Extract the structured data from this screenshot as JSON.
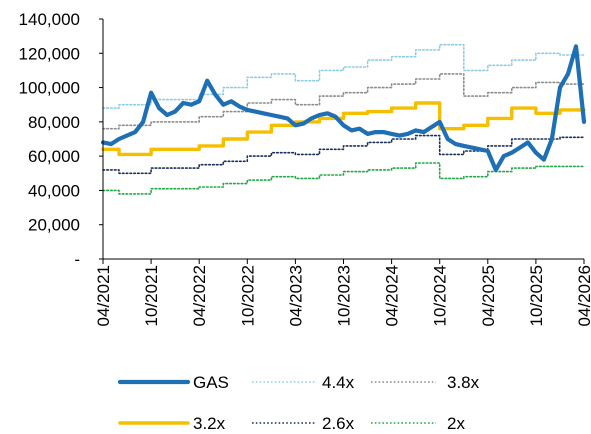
{
  "chart_data": {
    "type": "line",
    "title": "",
    "xlabel": "",
    "ylabel": "",
    "ylim": [
      0,
      140000
    ],
    "y_ticks": [
      0,
      20000,
      40000,
      60000,
      80000,
      100000,
      120000,
      140000
    ],
    "y_tick_labels": [
      "-",
      "20,000",
      "40,000",
      "60,000",
      "80,000",
      "100,000",
      "120,000",
      "140,000"
    ],
    "x_range": [
      "2021-04",
      "2026-04"
    ],
    "x_ticks": [
      "2021-04",
      "2021-10",
      "2022-04",
      "2022-10",
      "2023-04",
      "2023-10",
      "2024-04",
      "2024-10",
      "2025-04",
      "2025-10",
      "2026-04"
    ],
    "x_tick_labels": [
      "04/2021",
      "10/2021",
      "04/2022",
      "10/2022",
      "04/2023",
      "10/2023",
      "04/2024",
      "10/2024",
      "04/2025",
      "10/2025",
      "04/2026"
    ],
    "grid": false,
    "legend_position": "bottom",
    "series": [
      {
        "name": "GAS",
        "color": "#1f6fb4",
        "style": "solid-thick",
        "x": [
          "2021-04",
          "2021-05",
          "2021-06",
          "2021-07",
          "2021-08",
          "2021-09",
          "2021-10",
          "2021-11",
          "2021-12",
          "2022-01",
          "2022-02",
          "2022-03",
          "2022-04",
          "2022-05",
          "2022-06",
          "2022-07",
          "2022-08",
          "2022-09",
          "2022-10",
          "2022-11",
          "2022-12",
          "2023-01",
          "2023-02",
          "2023-03",
          "2023-04",
          "2023-05",
          "2023-06",
          "2023-07",
          "2023-08",
          "2023-09",
          "2023-10",
          "2023-11",
          "2023-12",
          "2024-01",
          "2024-02",
          "2024-03",
          "2024-04",
          "2024-05",
          "2024-06",
          "2024-07",
          "2024-08",
          "2024-09",
          "2024-10",
          "2024-11",
          "2024-12",
          "2025-01",
          "2025-02",
          "2025-03",
          "2025-04",
          "2025-05",
          "2025-06",
          "2025-07",
          "2025-08",
          "2025-09",
          "2025-10",
          "2025-11",
          "2025-12",
          "2026-01",
          "2026-02",
          "2026-03",
          "2026-04"
        ],
        "values": [
          68000,
          67000,
          70000,
          72000,
          74000,
          80000,
          97000,
          88000,
          84000,
          86000,
          91000,
          90000,
          92000,
          104000,
          96000,
          90000,
          92000,
          89000,
          87000,
          86000,
          85000,
          84000,
          83000,
          82000,
          78000,
          79000,
          82000,
          84000,
          85000,
          83000,
          78000,
          75000,
          76000,
          73000,
          74000,
          74000,
          73000,
          72000,
          73000,
          75000,
          74000,
          77000,
          80000,
          70000,
          67000,
          66000,
          65000,
          64000,
          63000,
          52000,
          60000,
          62000,
          65000,
          68000,
          62000,
          58000,
          70000,
          100000,
          108000,
          124000,
          80000
        ]
      },
      {
        "name": "4.4x",
        "color": "#8dcbe6",
        "style": "dotted",
        "x": [
          "2021-04",
          "2021-06",
          "2021-06",
          "2021-10",
          "2021-10",
          "2022-04",
          "2022-04",
          "2022-07",
          "2022-07",
          "2022-10",
          "2022-10",
          "2023-01",
          "2023-01",
          "2023-04",
          "2023-04",
          "2023-07",
          "2023-07",
          "2023-10",
          "2023-10",
          "2024-01",
          "2024-01",
          "2024-04",
          "2024-04",
          "2024-07",
          "2024-07",
          "2024-10",
          "2024-10",
          "2025-01",
          "2025-01",
          "2025-04",
          "2025-04",
          "2025-07",
          "2025-07",
          "2025-10",
          "2025-10",
          "2026-01",
          "2026-01",
          "2026-04"
        ],
        "values": [
          88000,
          88000,
          90000,
          90000,
          93000,
          93000,
          96000,
          96000,
          100000,
          100000,
          106000,
          106000,
          108000,
          108000,
          104000,
          104000,
          110000,
          110000,
          112000,
          112000,
          116000,
          116000,
          118000,
          118000,
          122000,
          122000,
          125000,
          125000,
          110000,
          110000,
          113000,
          113000,
          116000,
          116000,
          120000,
          120000,
          119000,
          119000
        ]
      },
      {
        "name": "3.8x",
        "color": "#8c8c8c",
        "style": "dotted",
        "x": [
          "2021-04",
          "2021-06",
          "2021-06",
          "2021-10",
          "2021-10",
          "2022-04",
          "2022-04",
          "2022-07",
          "2022-07",
          "2022-10",
          "2022-10",
          "2023-01",
          "2023-01",
          "2023-04",
          "2023-04",
          "2023-07",
          "2023-07",
          "2023-10",
          "2023-10",
          "2024-01",
          "2024-01",
          "2024-04",
          "2024-04",
          "2024-07",
          "2024-07",
          "2024-10",
          "2024-10",
          "2025-01",
          "2025-01",
          "2025-04",
          "2025-04",
          "2025-07",
          "2025-07",
          "2025-10",
          "2025-10",
          "2026-01",
          "2026-01",
          "2026-04"
        ],
        "values": [
          76000,
          76000,
          78000,
          78000,
          80000,
          80000,
          83000,
          83000,
          86000,
          86000,
          91000,
          91000,
          93000,
          93000,
          90000,
          90000,
          95000,
          95000,
          97000,
          97000,
          100000,
          100000,
          102000,
          102000,
          105000,
          105000,
          108000,
          108000,
          95000,
          95000,
          97000,
          97000,
          100000,
          100000,
          103000,
          103000,
          102000,
          102000
        ]
      },
      {
        "name": "3.2x",
        "color": "#f5bf00",
        "style": "solid-thick",
        "x": [
          "2021-04",
          "2021-06",
          "2021-06",
          "2021-10",
          "2021-10",
          "2022-04",
          "2022-04",
          "2022-07",
          "2022-07",
          "2022-10",
          "2022-10",
          "2023-01",
          "2023-01",
          "2023-04",
          "2023-04",
          "2023-07",
          "2023-07",
          "2023-10",
          "2023-10",
          "2024-01",
          "2024-01",
          "2024-04",
          "2024-04",
          "2024-07",
          "2024-07",
          "2024-10",
          "2024-10",
          "2025-01",
          "2025-01",
          "2025-04",
          "2025-04",
          "2025-07",
          "2025-07",
          "2025-10",
          "2025-10",
          "2026-01",
          "2026-01",
          "2026-04"
        ],
        "values": [
          64000,
          64000,
          61000,
          61000,
          64000,
          64000,
          66000,
          66000,
          70000,
          70000,
          74000,
          74000,
          78000,
          78000,
          80000,
          80000,
          82000,
          82000,
          85000,
          85000,
          86000,
          86000,
          88000,
          88000,
          91000,
          91000,
          76000,
          76000,
          78000,
          78000,
          82000,
          82000,
          88000,
          88000,
          85000,
          85000,
          87000,
          87000
        ]
      },
      {
        "name": "2.6x",
        "color": "#1a2e5a",
        "style": "dotted",
        "x": [
          "2021-04",
          "2021-06",
          "2021-06",
          "2021-10",
          "2021-10",
          "2022-04",
          "2022-04",
          "2022-07",
          "2022-07",
          "2022-10",
          "2022-10",
          "2023-01",
          "2023-01",
          "2023-04",
          "2023-04",
          "2023-07",
          "2023-07",
          "2023-10",
          "2023-10",
          "2024-01",
          "2024-01",
          "2024-04",
          "2024-04",
          "2024-07",
          "2024-07",
          "2024-10",
          "2024-10",
          "2025-01",
          "2025-01",
          "2025-04",
          "2025-04",
          "2025-07",
          "2025-07",
          "2025-10",
          "2025-10",
          "2026-01",
          "2026-01",
          "2026-04"
        ],
        "values": [
          52000,
          52000,
          50000,
          50000,
          53000,
          53000,
          55000,
          55000,
          57000,
          57000,
          60000,
          60000,
          62000,
          62000,
          61000,
          61000,
          64000,
          64000,
          66000,
          66000,
          68000,
          68000,
          70000,
          70000,
          72000,
          72000,
          61000,
          61000,
          63000,
          63000,
          66000,
          66000,
          70000,
          70000,
          70000,
          70000,
          71000,
          71000
        ]
      },
      {
        "name": "2x",
        "color": "#22a845",
        "style": "dotted",
        "x": [
          "2021-04",
          "2021-06",
          "2021-06",
          "2021-10",
          "2021-10",
          "2022-04",
          "2022-04",
          "2022-07",
          "2022-07",
          "2022-10",
          "2022-10",
          "2023-01",
          "2023-01",
          "2023-04",
          "2023-04",
          "2023-07",
          "2023-07",
          "2023-10",
          "2023-10",
          "2024-01",
          "2024-01",
          "2024-04",
          "2024-04",
          "2024-07",
          "2024-07",
          "2024-10",
          "2024-10",
          "2025-01",
          "2025-01",
          "2025-04",
          "2025-04",
          "2025-07",
          "2025-07",
          "2025-10",
          "2025-10",
          "2026-01",
          "2026-01",
          "2026-04"
        ],
        "values": [
          40000,
          40000,
          38000,
          38000,
          41000,
          41000,
          42000,
          42000,
          44000,
          44000,
          46000,
          46000,
          48000,
          48000,
          47000,
          47000,
          49000,
          49000,
          51000,
          51000,
          52000,
          52000,
          53000,
          53000,
          56000,
          56000,
          47000,
          47000,
          48000,
          48000,
          51000,
          51000,
          53000,
          53000,
          54000,
          54000,
          54000,
          54000
        ]
      }
    ]
  }
}
